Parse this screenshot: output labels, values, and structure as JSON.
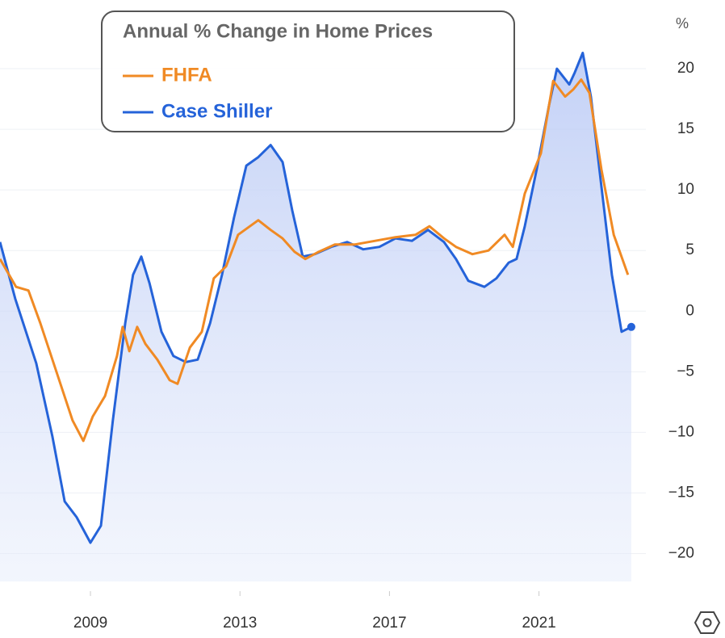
{
  "chart_data": {
    "type": "line",
    "title": "Annual % Change in Home Prices",
    "y_label": "%",
    "xlim": [
      2006.58,
      2023.86
    ],
    "xticks": [
      2009,
      2013,
      2017,
      2021
    ],
    "ylim": [
      -22.3,
      25
    ],
    "yticks": [
      {
        "value": -20,
        "label": "−20"
      },
      {
        "value": -15,
        "label": "−15"
      },
      {
        "value": -10,
        "label": "−10"
      },
      {
        "value": -5,
        "label": "−5"
      },
      0,
      5,
      10,
      15,
      20
    ],
    "grid": true,
    "legend": "top-left",
    "series": [
      {
        "name": "FHFA",
        "color": "#f08a24",
        "x": [
          2006.58,
          2007.01,
          2007.34,
          2007.66,
          2008.09,
          2008.52,
          2008.81,
          2009.06,
          2009.39,
          2009.71,
          2009.86,
          2010.04,
          2010.25,
          2010.47,
          2010.79,
          2011.12,
          2011.33,
          2011.66,
          2011.98,
          2012.3,
          2012.63,
          2012.95,
          2013.49,
          2013.82,
          2014.14,
          2014.46,
          2014.75,
          2015.11,
          2015.54,
          2016.08,
          2016.62,
          2017.16,
          2017.7,
          2018.07,
          2018.46,
          2018.78,
          2019.22,
          2019.65,
          2020.08,
          2020.3,
          2020.62,
          2021.05,
          2021.38,
          2021.7,
          2021.92,
          2022.13,
          2022.35,
          2022.67,
          2023.0,
          2023.38
        ],
        "values": [
          4.3,
          2,
          1.7,
          -1,
          -5,
          -9,
          -10.7,
          -8.7,
          -7,
          -3.7,
          -1.3,
          -3.3,
          -1.3,
          -2.7,
          -4,
          -5.7,
          -6,
          -3,
          -1.7,
          2.7,
          3.7,
          6.3,
          7.5,
          6.7,
          6,
          4.9,
          4.3,
          4.9,
          5.5,
          5.5,
          5.8,
          6.1,
          6.3,
          7,
          6,
          5.3,
          4.7,
          5,
          6.3,
          5.3,
          9.7,
          13,
          19,
          17.7,
          18.3,
          19.1,
          18,
          11.7,
          6.3,
          3
        ]
      },
      {
        "name": "Case Shiller",
        "color": "#2563d9",
        "x": [
          2006.58,
          2006.99,
          2007.55,
          2007.98,
          2008.31,
          2008.63,
          2009.0,
          2009.28,
          2009.6,
          2009.93,
          2010.14,
          2010.36,
          2010.58,
          2010.9,
          2011.22,
          2011.55,
          2011.87,
          2012.2,
          2012.52,
          2012.84,
          2013.17,
          2013.49,
          2013.82,
          2014.14,
          2014.4,
          2014.68,
          2015.0,
          2015.44,
          2015.87,
          2016.3,
          2016.73,
          2017.16,
          2017.6,
          2018.03,
          2018.46,
          2018.78,
          2019.11,
          2019.54,
          2019.86,
          2020.19,
          2020.4,
          2020.62,
          2020.94,
          2021.27,
          2021.48,
          2021.81,
          2021.96,
          2022.17,
          2022.39,
          2022.67,
          2022.95,
          2023.21,
          2023.47
        ],
        "values": [
          5.7,
          1,
          -4.3,
          -10.3,
          -15.7,
          -17,
          -19.1,
          -17.7,
          -9,
          -1,
          3,
          4.5,
          2.3,
          -1.7,
          -3.7,
          -4.2,
          -4,
          -1,
          3,
          7.7,
          12,
          12.7,
          13.7,
          12.3,
          8.3,
          4.5,
          4.7,
          5.3,
          5.7,
          5.1,
          5.3,
          6,
          5.8,
          6.7,
          5.7,
          4.3,
          2.5,
          2,
          2.7,
          4,
          4.3,
          7,
          11.7,
          17,
          20,
          18.7,
          19.7,
          21.3,
          17.7,
          10.3,
          3,
          -1.7,
          -1.3
        ]
      }
    ]
  }
}
